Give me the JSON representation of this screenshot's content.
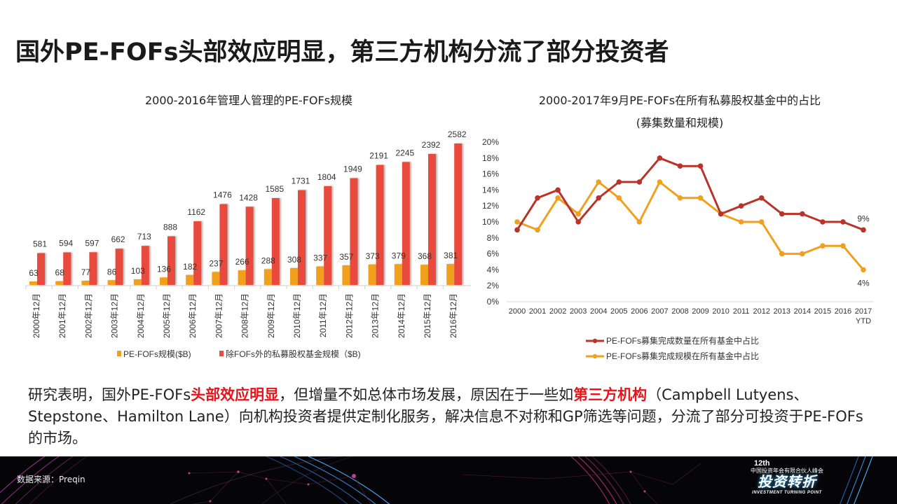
{
  "page": {
    "title": "国外PE-FOFs头部效应明显，第三方机构分流了部分投资者"
  },
  "colors": {
    "orange": "#f0a01e",
    "red": "#e84c3d",
    "line_red": "#b8342a",
    "line_orange": "#f0a01e",
    "highlight": "#e8141b"
  },
  "chart_data": [
    {
      "type": "bar",
      "title": "2000-2016年管理人管理的PE-FOFs规模",
      "categories": [
        "2000年12月",
        "2001年12月",
        "2002年12月",
        "2003年12月",
        "2004年12月",
        "2005年12月",
        "2006年12月",
        "2007年12月",
        "2008年12月",
        "2009年12月",
        "2010年12月",
        "2011年12月",
        "2012年12月",
        "2013年12月",
        "2014年12月",
        "2015年12月",
        "2016年12月"
      ],
      "series": [
        {
          "name": "PE-FOFs规模($B)",
          "values": [
            63,
            68,
            77,
            86,
            103,
            136,
            182,
            237,
            266,
            288,
            308,
            337,
            357,
            373,
            379,
            368,
            381
          ]
        },
        {
          "name": "除FOFs外的私募股权基金规模（$B)",
          "values": [
            581,
            594,
            597,
            662,
            713,
            888,
            1162,
            1476,
            1428,
            1585,
            1731,
            1804,
            1949,
            2191,
            2245,
            2392,
            2582
          ]
        }
      ],
      "xlabel": "",
      "ylabel": "",
      "ylim": [
        0,
        2600
      ],
      "grid": false,
      "legend": "bottom"
    },
    {
      "type": "line",
      "title": "2000-2017年9月PE-FOFs在所有私募股权基金中的占比",
      "subtitle": "(募集数量和规模)",
      "x": [
        "2000",
        "2001",
        "2002",
        "2003",
        "2004",
        "2005",
        "2006",
        "2007",
        "2008",
        "2009",
        "2010",
        "2011",
        "2012",
        "2013",
        "2014",
        "2015",
        "2016",
        "2017"
      ],
      "x_sublabels": {
        "2017": "YTD"
      },
      "series": [
        {
          "name": "PE-FOFs募集完成数量在所有基金中占比",
          "values": [
            9,
            13,
            14,
            10,
            13,
            15,
            15,
            18,
            17,
            17,
            11,
            12,
            13,
            11,
            11,
            10,
            10,
            9
          ],
          "end_label": "9%"
        },
        {
          "name": "PE-FOFs募集完成规模在所有基金中占比",
          "values": [
            10,
            9,
            13,
            11,
            15,
            13,
            10,
            15,
            13,
            13,
            11,
            10,
            10,
            6,
            6,
            7,
            7,
            4
          ],
          "end_label": "4%"
        }
      ],
      "yticks": [
        "0%",
        "2%",
        "4%",
        "6%",
        "8%",
        "10%",
        "12%",
        "14%",
        "16%",
        "18%",
        "20%"
      ],
      "ylim": [
        0,
        20
      ],
      "grid": false,
      "legend": "bottom"
    }
  ],
  "body": {
    "t1": "研究表明，国外PE-FOFs",
    "h1": "头部效应明显",
    "t2": "，但增量不如总体市场发展，原因在于一些如",
    "h2": "第三方机构",
    "t3": "（Campbell Lutyens、Stepstone、Hamilton Lane）向机构投资者提供定制化服务，解决信息不对称和GP筛选等问题，分流了部分可投资于PE-FOFs的市场。"
  },
  "footer": {
    "source": "数据来源：Preqin",
    "logo_line1": "12th",
    "logo_line2": "中国投资年会有限合伙人峰会",
    "logo_line3": "投资转折",
    "logo_line4": "INVESTMENT TURNING POINT"
  }
}
